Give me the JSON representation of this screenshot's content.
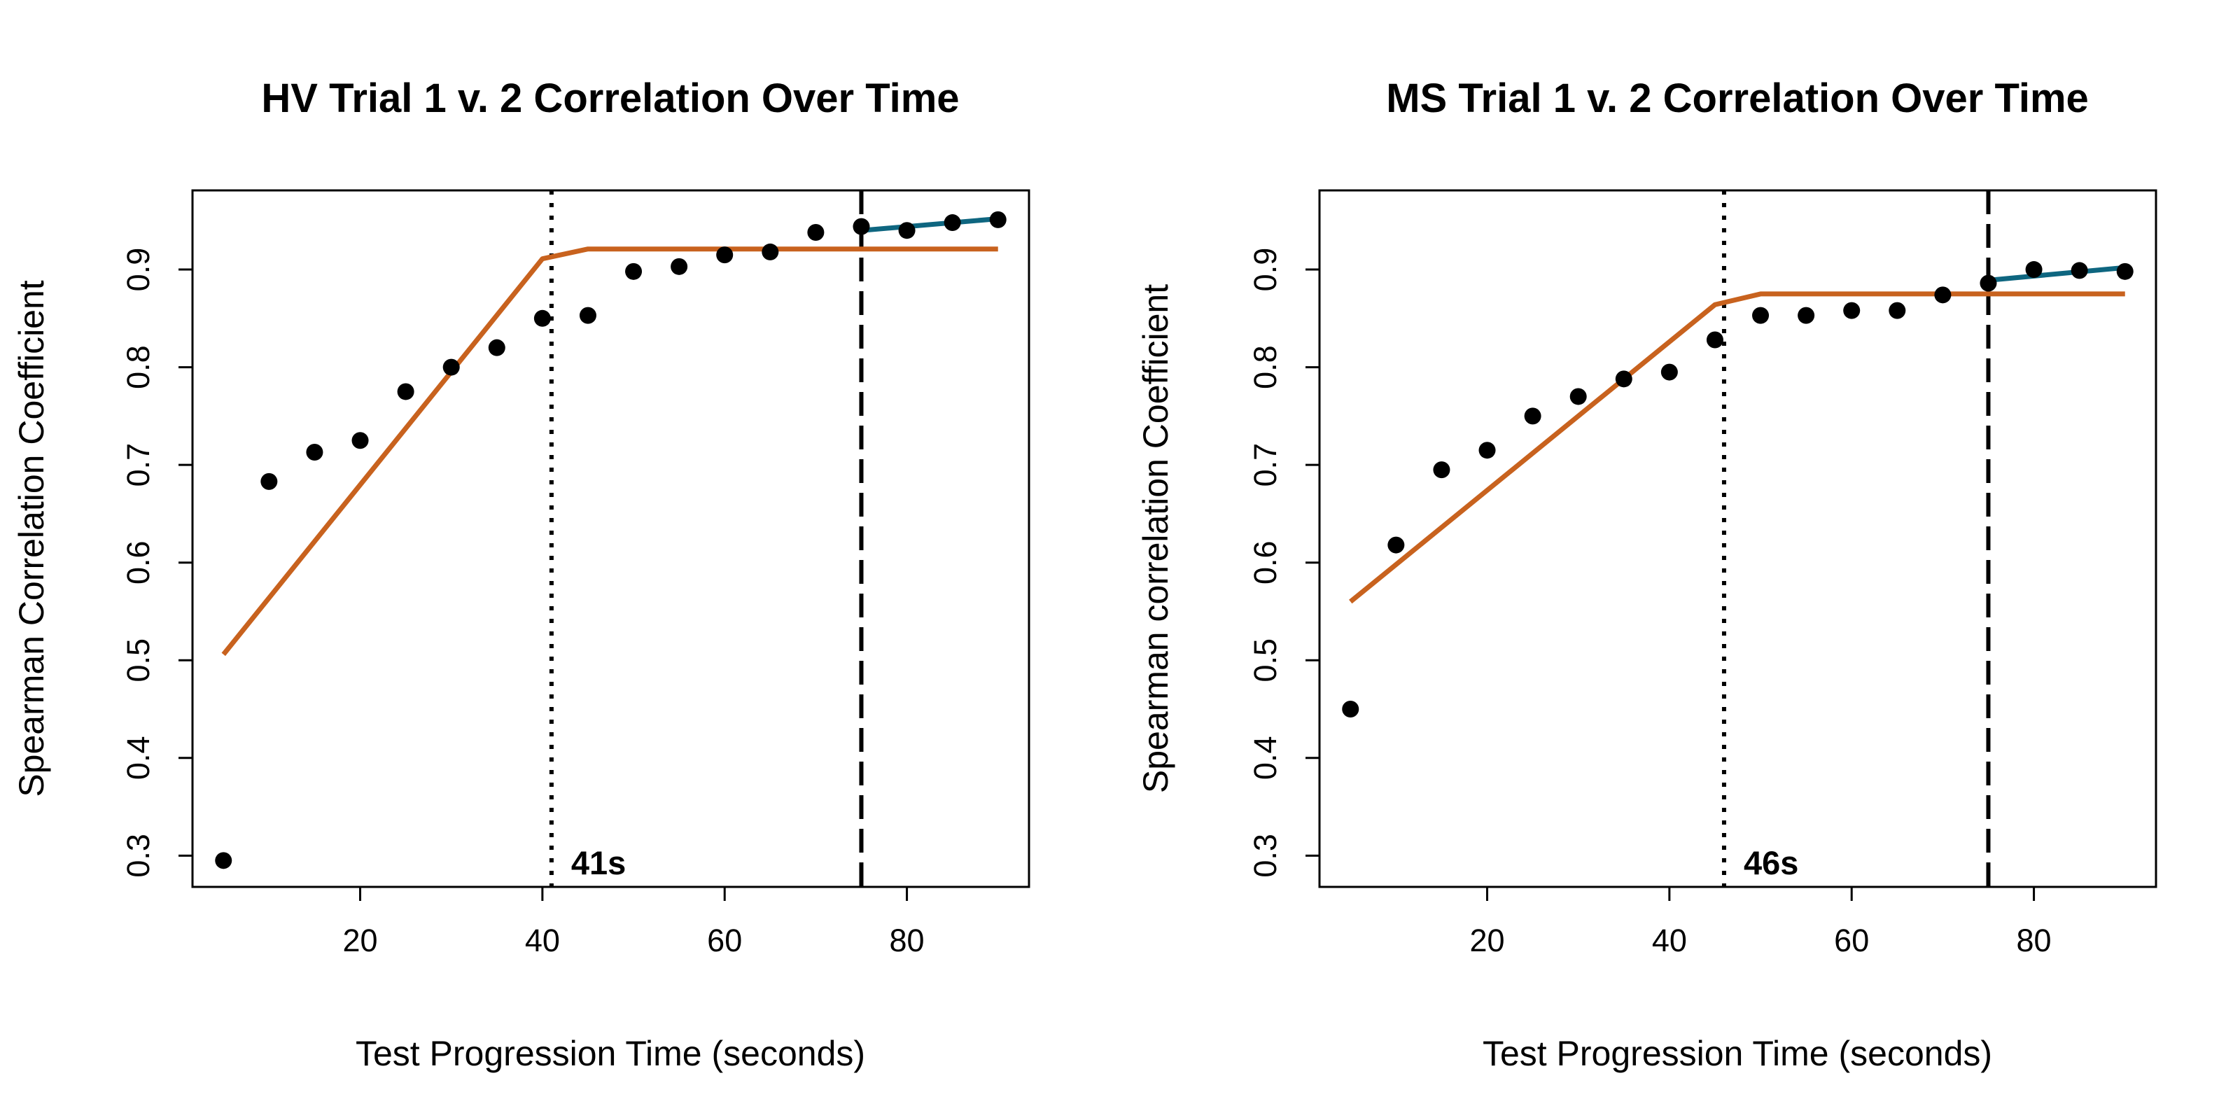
{
  "chart_data": [
    {
      "type": "scatter",
      "title": "HV Trial 1 v. 2 Correlation Over Time",
      "xlabel": "Test Progression Time (seconds)",
      "ylabel": "Spearman Correlation Coefficient",
      "xlim": [
        1.6,
        93.4
      ],
      "ylim": [
        0.268,
        0.981
      ],
      "x_ticks": [
        20,
        40,
        60,
        80
      ],
      "x_tick_labels": [
        "20",
        "40",
        "60",
        "80"
      ],
      "y_ticks": [
        0.3,
        0.4,
        0.5,
        0.6,
        0.7,
        0.8,
        0.9
      ],
      "y_tick_labels": [
        "0.3",
        "0.4",
        "0.5",
        "0.6",
        "0.7",
        "0.8",
        "0.9"
      ],
      "grid": false,
      "points": {
        "x": [
          5,
          10,
          15,
          20,
          25,
          30,
          35,
          40,
          45,
          50,
          55,
          60,
          65,
          70,
          75,
          80,
          85,
          90
        ],
        "y": [
          0.295,
          0.683,
          0.713,
          0.725,
          0.775,
          0.8,
          0.82,
          0.85,
          0.853,
          0.898,
          0.903,
          0.915,
          0.918,
          0.938,
          0.944,
          0.94,
          0.948,
          0.951
        ]
      },
      "segmented_fit": {
        "x": [
          5,
          40,
          45,
          90
        ],
        "y": [
          0.506,
          0.911,
          0.921,
          0.921
        ],
        "color": "#c8621e"
      },
      "tail_fit": {
        "x": [
          75,
          90
        ],
        "y": [
          0.94,
          0.952
        ],
        "color": "#0e6680"
      },
      "breakpoint_line": {
        "x": 41,
        "style": "dotted",
        "label": "41s"
      },
      "reference_line": {
        "x": 75,
        "style": "dashed"
      }
    },
    {
      "type": "scatter",
      "title": "MS Trial 1 v. 2 Correlation Over Time",
      "xlabel": "Test Progression Time (seconds)",
      "ylabel": "Spearman correlation Coefficient",
      "xlim": [
        1.6,
        93.4
      ],
      "ylim": [
        0.268,
        0.981
      ],
      "x_ticks": [
        20,
        40,
        60,
        80
      ],
      "x_tick_labels": [
        "20",
        "40",
        "60",
        "80"
      ],
      "y_ticks": [
        0.3,
        0.4,
        0.5,
        0.6,
        0.7,
        0.8,
        0.9
      ],
      "y_tick_labels": [
        "0.3",
        "0.4",
        "0.5",
        "0.6",
        "0.7",
        "0.8",
        "0.9"
      ],
      "grid": false,
      "points": {
        "x": [
          5,
          10,
          15,
          20,
          25,
          30,
          35,
          40,
          45,
          50,
          55,
          60,
          65,
          70,
          75,
          80,
          85,
          90
        ],
        "y": [
          0.45,
          0.618,
          0.695,
          0.715,
          0.75,
          0.77,
          0.788,
          0.795,
          0.828,
          0.853,
          0.853,
          0.858,
          0.858,
          0.874,
          0.886,
          0.9,
          0.899,
          0.898
        ]
      },
      "segmented_fit": {
        "x": [
          5,
          45,
          50,
          90
        ],
        "y": [
          0.56,
          0.864,
          0.875,
          0.875
        ],
        "color": "#c8621e"
      },
      "tail_fit": {
        "x": [
          75,
          90
        ],
        "y": [
          0.889,
          0.902
        ],
        "color": "#0e6680"
      },
      "breakpoint_line": {
        "x": 46,
        "style": "dotted",
        "label": "46s"
      },
      "reference_line": {
        "x": 75,
        "style": "dashed"
      }
    }
  ]
}
